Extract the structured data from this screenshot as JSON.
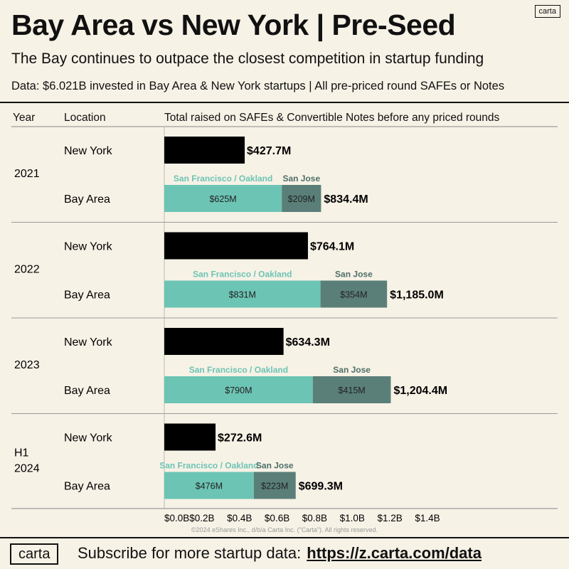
{
  "brand": {
    "badge": "carta",
    "footer_logo": "carta"
  },
  "header": {
    "title": "Bay Area vs New York | Pre-Seed",
    "subtitle": "The Bay continues to outpace the closest competition in startup funding",
    "dataline": "Data: $6.021B invested in Bay Area & New York startups | All pre-priced round SAFEs or Notes"
  },
  "columns": {
    "year": "Year",
    "location": "Location",
    "total": "Total raised on SAFEs & Convertible Notes before any priced rounds"
  },
  "footer": {
    "text": "Subscribe for more startup data:",
    "link": "https://z.carta.com/data"
  },
  "colors": {
    "new_york": "#000000",
    "sf_oakland": "#6cc4b4",
    "san_jose": "#5a7f78",
    "sf_label": "#6cc4b4",
    "sj_label": "#4e6f69"
  },
  "chart_data": {
    "type": "bar",
    "orientation": "horizontal",
    "stacked": true,
    "unit": "$M",
    "xlim": [
      0,
      1.4
    ],
    "x_ticks": [
      "$0.0B",
      "$0.2B",
      "$0.4B",
      "$0.6B",
      "$0.8B",
      "$1.0B",
      "$1.2B",
      "$1.4B"
    ],
    "copyright": "©2024 eShares Inc., d/b/a Carta Inc. (\"Carta\"). All rights reserved.",
    "series_names": {
      "sf": "San Francisco / Oakland",
      "sj": "San Jose"
    },
    "groups": [
      {
        "year": "2021",
        "new_york": {
          "location": "New York",
          "value": 427.7,
          "label": "$427.7M"
        },
        "bay_area": {
          "location": "Bay Area",
          "sf": 625,
          "sf_label": "$625M",
          "sj": 209,
          "sj_label": "$209M",
          "total": 834.4,
          "total_label": "$834.4M"
        }
      },
      {
        "year": "2022",
        "new_york": {
          "location": "New York",
          "value": 764.1,
          "label": "$764.1M"
        },
        "bay_area": {
          "location": "Bay Area",
          "sf": 831,
          "sf_label": "$831M",
          "sj": 354,
          "sj_label": "$354M",
          "total": 1185.0,
          "total_label": "$1,185.0M"
        }
      },
      {
        "year": "2023",
        "new_york": {
          "location": "New York",
          "value": 634.3,
          "label": "$634.3M"
        },
        "bay_area": {
          "location": "Bay Area",
          "sf": 790,
          "sf_label": "$790M",
          "sj": 415,
          "sj_label": "$415M",
          "total": 1204.4,
          "total_label": "$1,204.4M"
        }
      },
      {
        "year": "H1\n2024",
        "new_york": {
          "location": "New York",
          "value": 272.6,
          "label": "$272.6M"
        },
        "bay_area": {
          "location": "Bay Area",
          "sf": 476,
          "sf_label": "$476M",
          "sj": 223,
          "sj_label": "$223M",
          "total": 699.3,
          "total_label": "$699.3M"
        }
      }
    ]
  }
}
